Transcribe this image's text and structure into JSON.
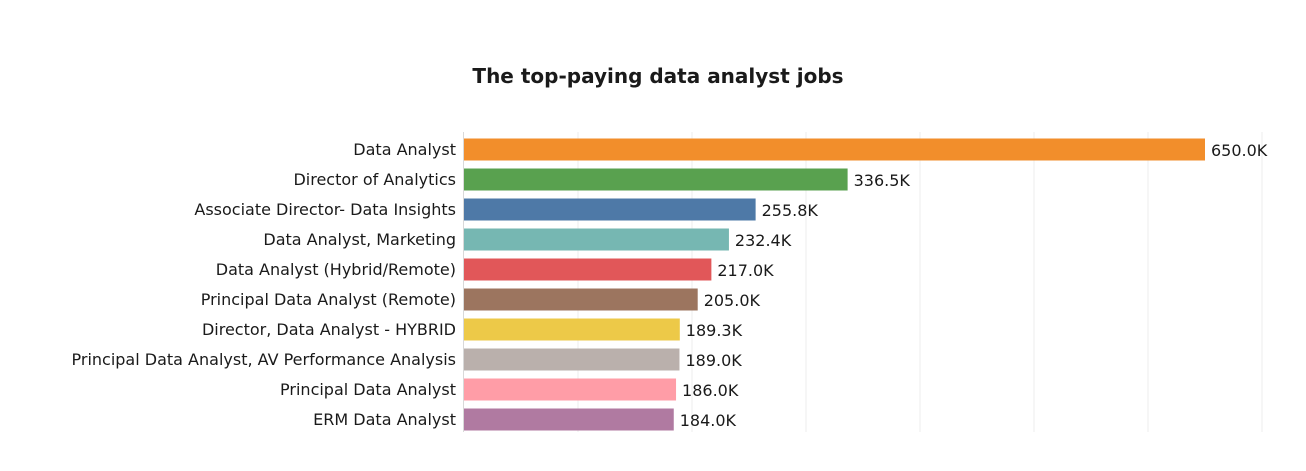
{
  "chart_data": {
    "type": "bar",
    "orientation": "horizontal",
    "title": "The top-paying data analyst jobs",
    "xlabel": "",
    "ylabel": "",
    "categories": [
      "Data Analyst",
      "Director of Analytics",
      "Associate Director- Data Insights",
      "Data Analyst, Marketing",
      "Data Analyst (Hybrid/Remote)",
      "Principal Data Analyst (Remote)",
      "Director, Data Analyst - HYBRID",
      "Principal Data Analyst, AV Performance Analysis",
      "Principal Data Analyst",
      "ERM Data Analyst"
    ],
    "values": [
      650000,
      336500,
      255800,
      232400,
      217000,
      205000,
      189300,
      189000,
      186000,
      184000
    ],
    "value_labels": [
      "650.0K",
      "336.5K",
      "255.8K",
      "232.4K",
      "217.0K",
      "205.0K",
      "189.3K",
      "189.0K",
      "186.0K",
      "184.0K"
    ],
    "colors": [
      "#f28e2b",
      "#59a14f",
      "#4e79a7",
      "#76b7b2",
      "#e15759",
      "#9c755f",
      "#edc948",
      "#bab0ac",
      "#ff9da7",
      "#b07aa1"
    ],
    "xlim": [
      0,
      700000
    ],
    "gridlines": [
      100000,
      200000,
      300000,
      400000,
      500000,
      600000,
      700000
    ],
    "grid": true,
    "legend": "none"
  }
}
